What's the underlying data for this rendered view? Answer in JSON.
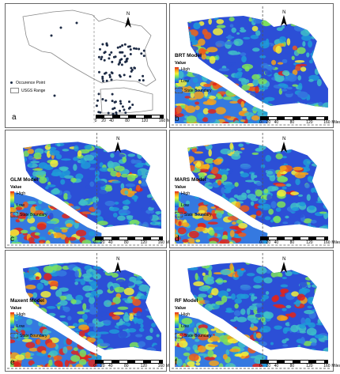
{
  "figure": {
    "north_label": "N",
    "scale": {
      "ticks": [
        "0",
        "20",
        "40",
        "80",
        "120",
        "160"
      ],
      "unit": "Miles"
    },
    "legend": {
      "value_label": "Value",
      "high_label": "High",
      "low_label": "Low",
      "boundary_label": "State Boundary"
    },
    "occurrence_legend": {
      "point_label": "Occurence Point",
      "range_label": "USGS Range"
    },
    "panels": [
      {
        "letter": "a",
        "model": ""
      },
      {
        "letter": "b",
        "model": "BRT Model"
      },
      {
        "letter": "c",
        "model": "GLM Model"
      },
      {
        "letter": "d",
        "model": "MARS Model"
      },
      {
        "letter": "e",
        "model": "Maxent Model"
      },
      {
        "letter": "f",
        "model": "RF Model"
      }
    ]
  },
  "colors": {
    "high": "#e0241b",
    "mid": "#f3ef3a",
    "low": "#2c4fd6",
    "point": "#1c2a44"
  }
}
